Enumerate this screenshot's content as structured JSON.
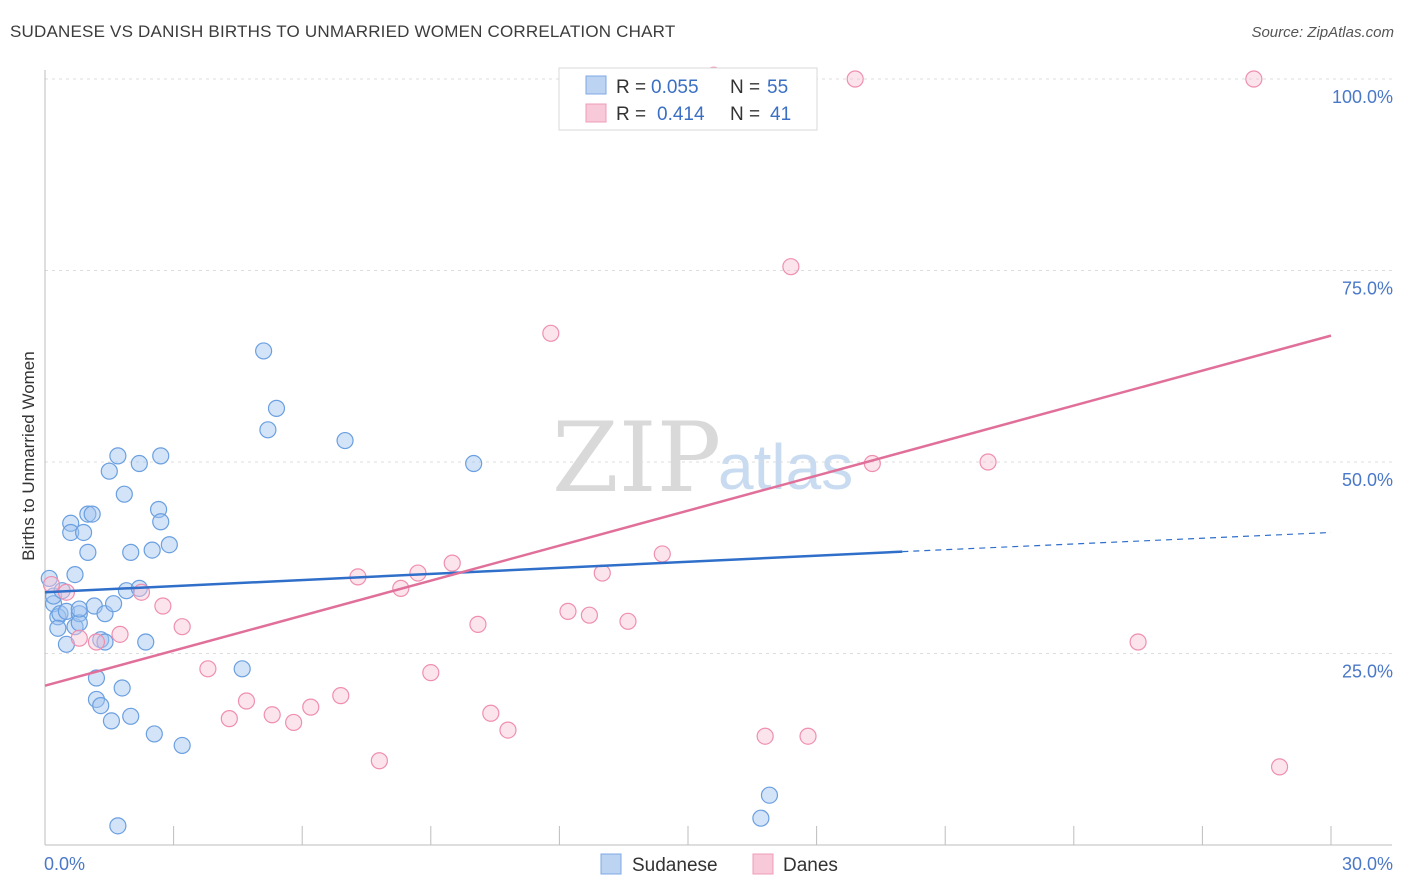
{
  "header": {
    "title": "SUDANESE VS DANISH BIRTHS TO UNMARRIED WOMEN CORRELATION CHART",
    "source": "Source: ZipAtlas.com"
  },
  "legend": {
    "r_label": "R =",
    "n_label": "N =",
    "sudanese_r": "0.055",
    "sudanese_n": "55",
    "danes_r": "0.414",
    "danes_n": "41"
  },
  "watermark": {
    "zip": "ZIP",
    "atlas": "atlas"
  },
  "chart_data": {
    "type": "scatter",
    "title": "SUDANESE VS DANISH BIRTHS TO UNMARRIED WOMEN CORRELATION CHART",
    "xlabel": "",
    "ylabel": "Births to Unmarried Women",
    "xlim": [
      0,
      30
    ],
    "ylim": [
      0,
      100
    ],
    "x_tick_labels": [
      "0.0%",
      "30.0%"
    ],
    "y_tick_labels": [
      "25.0%",
      "50.0%",
      "75.0%",
      "100.0%"
    ],
    "y_ticks": [
      25,
      50,
      75,
      100
    ],
    "colors": {
      "sudanese": "#6a9fe0",
      "danes": "#ef8fae",
      "sudanese_line": "#2f6fca",
      "danes_line": "#e0709a"
    },
    "series": [
      {
        "name": "Sudanese",
        "trend": {
          "x0": 0,
          "y0": 33.0,
          "x1": 20,
          "y1": 38.3,
          "x_dash_end": 30,
          "y_dash_end": 40.8
        },
        "points": [
          [
            0.1,
            34.8
          ],
          [
            0.2,
            31.5
          ],
          [
            0.2,
            32.5
          ],
          [
            0.3,
            29.8
          ],
          [
            0.35,
            30.2
          ],
          [
            0.4,
            33.2
          ],
          [
            0.5,
            30.5
          ],
          [
            0.5,
            26.2
          ],
          [
            0.6,
            42.0
          ],
          [
            0.6,
            40.8
          ],
          [
            0.7,
            35.3
          ],
          [
            0.7,
            28.5
          ],
          [
            0.8,
            30.2
          ],
          [
            0.8,
            29.0
          ],
          [
            0.8,
            30.8
          ],
          [
            0.9,
            40.8
          ],
          [
            1.0,
            43.2
          ],
          [
            1.0,
            38.2
          ],
          [
            1.1,
            43.2
          ],
          [
            1.15,
            31.2
          ],
          [
            1.2,
            21.8
          ],
          [
            1.2,
            19.0
          ],
          [
            1.3,
            18.2
          ],
          [
            1.3,
            26.8
          ],
          [
            1.4,
            30.2
          ],
          [
            1.4,
            26.5
          ],
          [
            1.5,
            48.8
          ],
          [
            1.55,
            16.2
          ],
          [
            1.6,
            31.5
          ],
          [
            1.7,
            50.8
          ],
          [
            1.7,
            2.5
          ],
          [
            1.8,
            20.5
          ],
          [
            1.85,
            45.8
          ],
          [
            1.9,
            33.2
          ],
          [
            2.0,
            38.2
          ],
          [
            2.0,
            16.8
          ],
          [
            2.2,
            49.8
          ],
          [
            2.2,
            33.5
          ],
          [
            2.35,
            26.5
          ],
          [
            2.5,
            38.5
          ],
          [
            2.55,
            14.5
          ],
          [
            2.65,
            43.8
          ],
          [
            2.7,
            50.8
          ],
          [
            2.7,
            42.2
          ],
          [
            2.9,
            39.2
          ],
          [
            3.2,
            13.0
          ],
          [
            4.6,
            23.0
          ],
          [
            5.1,
            64.5
          ],
          [
            5.2,
            54.2
          ],
          [
            5.4,
            57.0
          ],
          [
            7.0,
            52.8
          ],
          [
            10.0,
            49.8
          ],
          [
            16.9,
            6.5
          ],
          [
            16.7,
            3.5
          ],
          [
            0.3,
            28.3
          ]
        ]
      },
      {
        "name": "Danes",
        "trend": {
          "x0": 0,
          "y0": 20.8,
          "x1": 30,
          "y1": 66.5
        },
        "points": [
          [
            0.15,
            34.0
          ],
          [
            0.8,
            27.0
          ],
          [
            1.2,
            26.5
          ],
          [
            1.75,
            27.5
          ],
          [
            2.25,
            33.0
          ],
          [
            2.75,
            31.2
          ],
          [
            3.2,
            28.5
          ],
          [
            3.8,
            23.0
          ],
          [
            4.3,
            16.5
          ],
          [
            4.7,
            18.8
          ],
          [
            5.3,
            17.0
          ],
          [
            5.8,
            16.0
          ],
          [
            6.2,
            18.0
          ],
          [
            6.9,
            19.5
          ],
          [
            7.3,
            35.0
          ],
          [
            7.8,
            11.0
          ],
          [
            8.3,
            33.5
          ],
          [
            8.7,
            35.5
          ],
          [
            9.0,
            22.5
          ],
          [
            9.5,
            36.8
          ],
          [
            10.1,
            28.8
          ],
          [
            10.4,
            17.2
          ],
          [
            10.8,
            15.0
          ],
          [
            11.8,
            66.8
          ],
          [
            12.2,
            30.5
          ],
          [
            12.7,
            30.0
          ],
          [
            13.0,
            35.5
          ],
          [
            13.6,
            29.2
          ],
          [
            14.4,
            38.0
          ],
          [
            15.6,
            100.5
          ],
          [
            16.8,
            14.2
          ],
          [
            17.4,
            75.5
          ],
          [
            17.8,
            14.2
          ],
          [
            18.9,
            100.0
          ],
          [
            19.3,
            49.8
          ],
          [
            22.0,
            50.0
          ],
          [
            25.5,
            26.5
          ],
          [
            28.2,
            100.0
          ],
          [
            28.8,
            10.2
          ],
          [
            16.6,
            100.3
          ],
          [
            0.5,
            33.0
          ]
        ]
      }
    ]
  },
  "bottom_legend": {
    "sudanese": "Sudanese",
    "danes": "Danes"
  }
}
